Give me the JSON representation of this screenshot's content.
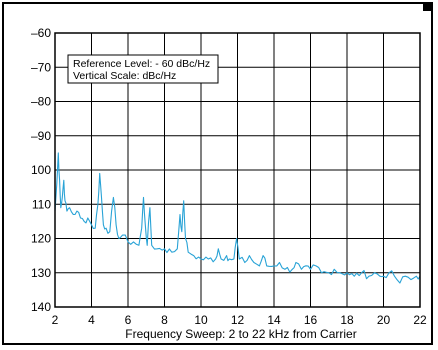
{
  "chart_data": {
    "type": "line",
    "title": "",
    "xlabel": "Frequency Sweep: 2 to 22 kHz from Carrier",
    "ylabel": "",
    "xlim": [
      2,
      22
    ],
    "ylim": [
      -60,
      -140
    ],
    "x_ticks": [
      2,
      4,
      6,
      8,
      10,
      12,
      14,
      16,
      18,
      20,
      22
    ],
    "x_tick_labels": [
      "2",
      "4",
      "6",
      "8",
      "10",
      "12",
      "14",
      "16",
      "18",
      "20",
      "22"
    ],
    "y_ticks": [
      -60,
      -70,
      -80,
      -90,
      -100,
      -110,
      -120,
      -130,
      -140
    ],
    "y_tick_labels": [
      "–60",
      "–70",
      "–80",
      "–90",
      "100",
      "110",
      "120",
      "130",
      "140"
    ],
    "grid": true,
    "annotation": {
      "lines": [
        "Reference Level: - 60 dBc/Hz",
        "Vertical Scale: dBc/Hz"
      ]
    },
    "series": [
      {
        "color": "#29a3d6",
        "points": [
          [
            2.0,
            -112
          ],
          [
            2.1,
            -104
          ],
          [
            2.18,
            -95
          ],
          [
            2.25,
            -103
          ],
          [
            2.32,
            -111
          ],
          [
            2.4,
            -108
          ],
          [
            2.48,
            -103
          ],
          [
            2.55,
            -109
          ],
          [
            2.65,
            -112
          ],
          [
            2.8,
            -111
          ],
          [
            3.0,
            -113
          ],
          [
            3.2,
            -112
          ],
          [
            3.4,
            -114
          ],
          [
            3.6,
            -115
          ],
          [
            3.8,
            -114
          ],
          [
            4.0,
            -116
          ],
          [
            4.2,
            -117
          ],
          [
            4.35,
            -110
          ],
          [
            4.45,
            -101
          ],
          [
            4.55,
            -108
          ],
          [
            4.65,
            -116
          ],
          [
            4.8,
            -117
          ],
          [
            5.0,
            -118
          ],
          [
            5.2,
            -108
          ],
          [
            5.35,
            -116
          ],
          [
            5.5,
            -120
          ],
          [
            5.7,
            -119
          ],
          [
            6.0,
            -121
          ],
          [
            6.3,
            -121
          ],
          [
            6.6,
            -122
          ],
          [
            6.75,
            -117
          ],
          [
            6.85,
            -108
          ],
          [
            6.95,
            -116
          ],
          [
            7.05,
            -122
          ],
          [
            7.2,
            -111
          ],
          [
            7.3,
            -122
          ],
          [
            7.6,
            -123
          ],
          [
            8.0,
            -123
          ],
          [
            8.4,
            -124
          ],
          [
            8.7,
            -123
          ],
          [
            8.85,
            -113
          ],
          [
            8.95,
            -118
          ],
          [
            9.05,
            -109
          ],
          [
            9.15,
            -120
          ],
          [
            9.3,
            -124
          ],
          [
            9.6,
            -125
          ],
          [
            10.0,
            -126
          ],
          [
            10.4,
            -126
          ],
          [
            10.8,
            -126
          ],
          [
            10.95,
            -123
          ],
          [
            11.1,
            -126
          ],
          [
            11.4,
            -125
          ],
          [
            11.55,
            -126
          ],
          [
            11.8,
            -126
          ],
          [
            11.95,
            -120
          ],
          [
            12.1,
            -126
          ],
          [
            12.4,
            -127
          ],
          [
            12.65,
            -125
          ],
          [
            12.9,
            -127
          ],
          [
            13.2,
            -128
          ],
          [
            13.4,
            -125
          ],
          [
            13.6,
            -128
          ],
          [
            14.0,
            -128
          ],
          [
            14.3,
            -127
          ],
          [
            14.6,
            -129
          ],
          [
            15.0,
            -129
          ],
          [
            15.2,
            -127
          ],
          [
            15.5,
            -129
          ],
          [
            16.0,
            -129
          ],
          [
            16.3,
            -128
          ],
          [
            16.6,
            -130
          ],
          [
            17.0,
            -130
          ],
          [
            17.3,
            -129
          ],
          [
            17.6,
            -130
          ],
          [
            18.0,
            -130
          ],
          [
            18.4,
            -131
          ],
          [
            18.8,
            -130
          ],
          [
            19.2,
            -131
          ],
          [
            19.5,
            -130
          ],
          [
            19.8,
            -131
          ],
          [
            20.0,
            -131
          ],
          [
            20.3,
            -130
          ],
          [
            20.6,
            -131
          ],
          [
            20.9,
            -133
          ],
          [
            21.2,
            -131
          ],
          [
            21.5,
            -132
          ],
          [
            21.8,
            -131
          ],
          [
            22.0,
            -131
          ]
        ]
      }
    ]
  }
}
